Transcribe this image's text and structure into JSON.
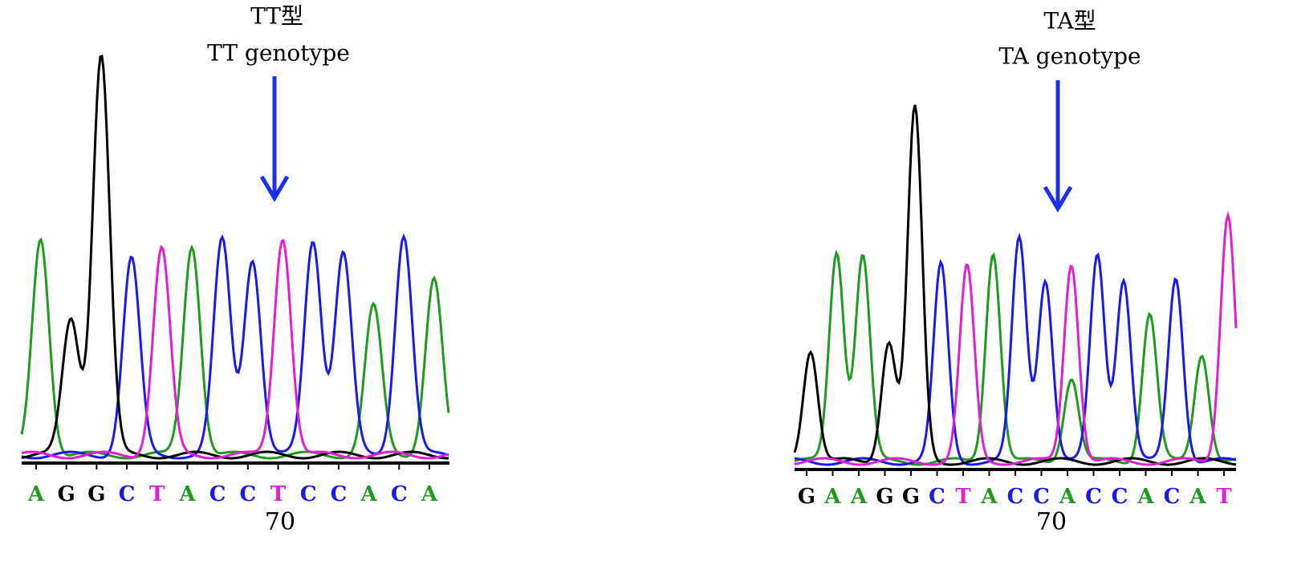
{
  "panels": [
    {
      "title_cn": "TT型",
      "title_en": "TT genotype",
      "bases": [
        "A",
        "G",
        "G",
        "C",
        "T",
        "A",
        "C",
        "C",
        "T",
        "C",
        "C",
        "A",
        "C",
        "A"
      ],
      "position_label": "70"
    },
    {
      "title_cn": "TA型",
      "title_en": "TA genotype",
      "bases": [
        "G",
        "A",
        "A",
        "G",
        "G",
        "C",
        "T",
        "A",
        "C",
        "C",
        "A",
        "C",
        "C",
        "A",
        "C",
        "A",
        "T"
      ],
      "position_label": "70"
    }
  ]
}
